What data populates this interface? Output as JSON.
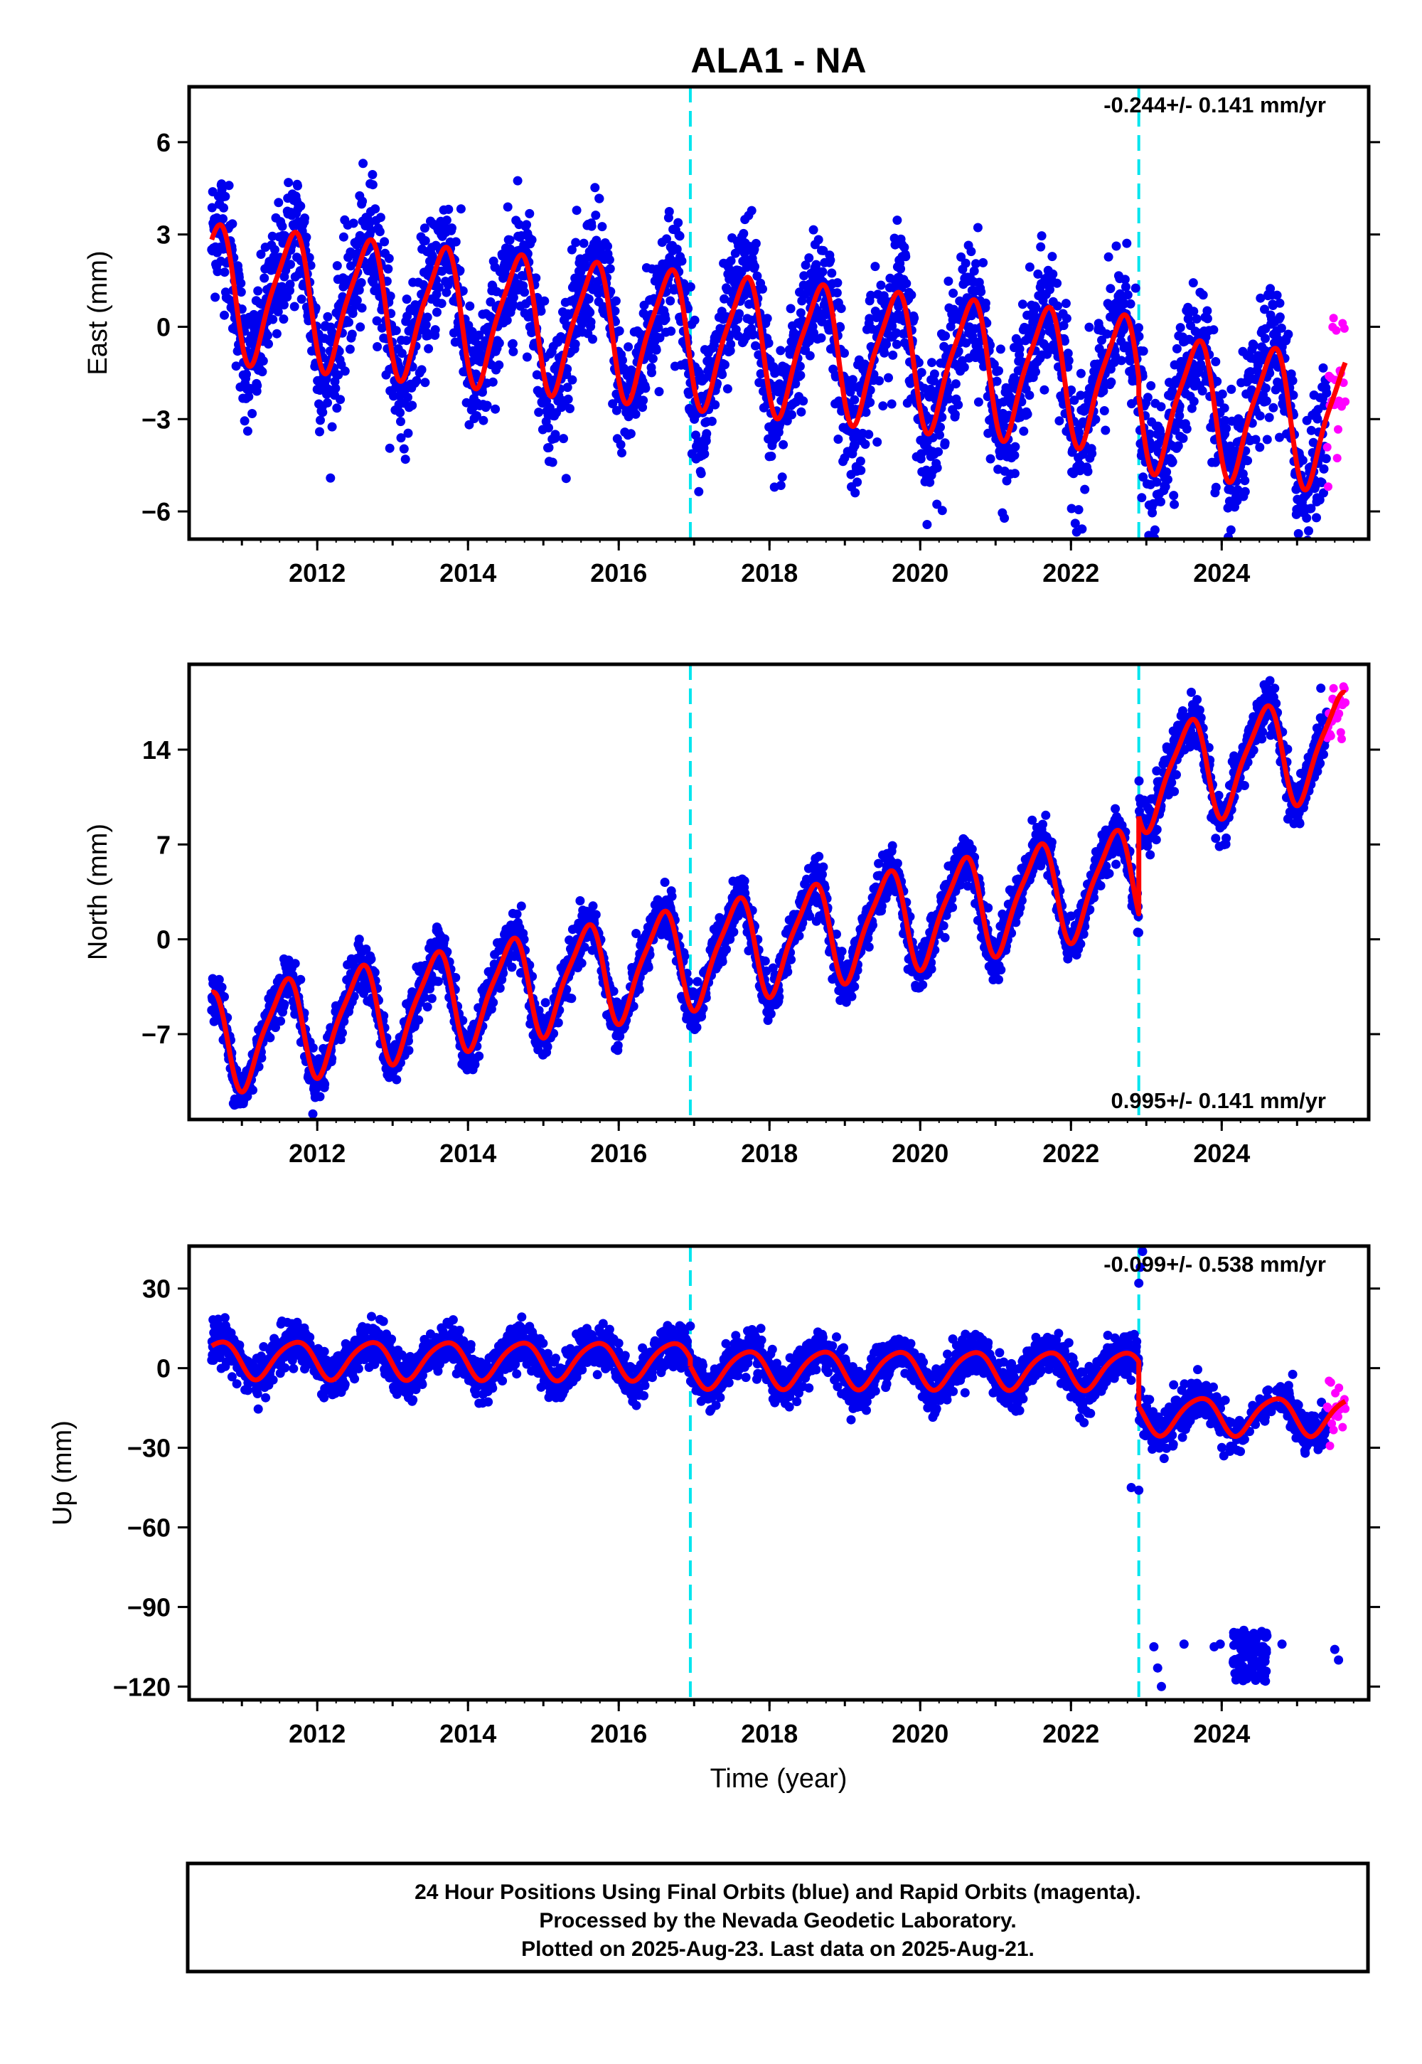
{
  "title": "ALA1 - NA",
  "xlabel": "Time (year)",
  "footer": {
    "line1": "24 Hour Positions Using Final Orbits (blue) and Rapid Orbits (magenta).",
    "line2": "Processed by the Nevada Geodetic Laboratory.",
    "line3": "Plotted on 2025-Aug-23. Last data on 2025-Aug-21."
  },
  "colors": {
    "final_orbits": "#0000ee",
    "rapid_orbits": "#ff00ff",
    "model": "#ff0000",
    "steps": "#00e5ee"
  },
  "chart_data": [
    {
      "type": "scatter",
      "component": "east",
      "ylabel": "East (mm)",
      "rate_text": "-0.244+/- 0.141 mm/yr",
      "xlim": [
        2010.3,
        2025.95
      ],
      "ylim": [
        -6.9,
        7.8
      ],
      "xticks": [
        2012,
        2014,
        2016,
        2018,
        2020,
        2022,
        2024
      ],
      "yticks": [
        -6,
        -3,
        0,
        3,
        6
      ],
      "ytick_labels": [
        "−6",
        "−3",
        "0",
        "3",
        "6"
      ],
      "steps": [
        2016.95,
        2022.9
      ],
      "data_span": [
        2010.6,
        2025.4
      ],
      "rapid_span": [
        2025.4,
        2025.64
      ],
      "model": {
        "offset": 1.2,
        "rate": -0.244,
        "annual_amp": 2.1,
        "annual_phase": 0.65,
        "semiannual_amp": 0.45,
        "semiannual_phase": 0.3,
        "step_jumps": [
          0,
          -0.6
        ]
      },
      "scatter_std": 1.05,
      "series": [
        {
          "name": "Final Orbits (blue)",
          "color": "#0000ee"
        },
        {
          "name": "Rapid Orbits (magenta)",
          "color": "#ff00ff"
        }
      ]
    },
    {
      "type": "scatter",
      "component": "north",
      "ylabel": "North (mm)",
      "rate_text": "0.995+/- 0.141 mm/yr",
      "xlim": [
        2010.3,
        2025.95
      ],
      "ylim": [
        -13.3,
        20.3
      ],
      "xticks": [
        2012,
        2014,
        2016,
        2018,
        2020,
        2022,
        2024
      ],
      "yticks": [
        -7,
        0,
        7,
        14
      ],
      "ytick_labels": [
        "−7",
        "0",
        "7",
        "14"
      ],
      "steps": [
        2016.95,
        2022.9
      ],
      "data_span": [
        2010.6,
        2025.4
      ],
      "rapid_span": [
        2025.4,
        2025.64
      ],
      "model": {
        "offset": -7.6,
        "rate": 0.995,
        "annual_amp": 3.6,
        "annual_phase": 0.55,
        "semiannual_amp": 0.8,
        "semiannual_phase": 0.2,
        "step_jumps": [
          0,
          7.2
        ]
      },
      "scatter_std": 0.9,
      "series": [
        {
          "name": "Final Orbits (blue)",
          "color": "#0000ee"
        },
        {
          "name": "Rapid Orbits (magenta)",
          "color": "#ff00ff"
        }
      ]
    },
    {
      "type": "scatter",
      "component": "up",
      "ylabel": "Up (mm)",
      "rate_text": "-0.099+/- 0.538 mm/yr",
      "xlim": [
        2010.3,
        2025.95
      ],
      "ylim": [
        -125,
        46
      ],
      "xticks": [
        2012,
        2014,
        2016,
        2018,
        2020,
        2022,
        2024
      ],
      "yticks": [
        -120,
        -90,
        -60,
        -30,
        0,
        30
      ],
      "ytick_labels": [
        "−120",
        "−90",
        "−60",
        "−30",
        "0",
        "30"
      ],
      "steps": [
        2016.95,
        2022.9
      ],
      "data_span": [
        2010.6,
        2025.4
      ],
      "rapid_span": [
        2025.4,
        2025.64
      ],
      "model": {
        "offset": 3.5,
        "rate": -0.099,
        "annual_amp": 7.0,
        "annual_phase": 0.7,
        "semiannual_amp": 1.0,
        "semiannual_phase": 0.4,
        "step_jumps": [
          -3,
          -17
        ]
      },
      "scatter_std": 4.0,
      "outlier_cluster": {
        "x_range": [
          2024.15,
          2024.6
        ],
        "y_range": [
          -118,
          -98
        ]
      },
      "outliers_scattered": [
        {
          "x": 2023.1,
          "y": -105
        },
        {
          "x": 2023.2,
          "y": -120
        },
        {
          "x": 2023.15,
          "y": -113
        },
        {
          "x": 2023.5,
          "y": -104
        },
        {
          "x": 2023.9,
          "y": -105
        },
        {
          "x": 2023.98,
          "y": -104
        },
        {
          "x": 2024.8,
          "y": -104
        },
        {
          "x": 2025.5,
          "y": -106
        },
        {
          "x": 2025.55,
          "y": -110
        },
        {
          "x": 2022.8,
          "y": -45
        },
        {
          "x": 2022.9,
          "y": -46
        },
        {
          "x": 2022.92,
          "y": 38
        },
        {
          "x": 2022.95,
          "y": 44
        },
        {
          "x": 2022.9,
          "y": 32
        }
      ],
      "series": [
        {
          "name": "Final Orbits (blue)",
          "color": "#0000ee"
        },
        {
          "name": "Rapid Orbits (magenta)",
          "color": "#ff00ff"
        }
      ]
    }
  ]
}
